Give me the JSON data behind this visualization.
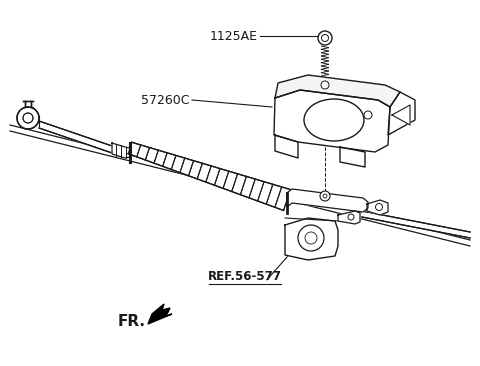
{
  "bg_color": "#ffffff",
  "line_color": "#1a1a1a",
  "label_1125AE": "1125AE",
  "label_57260C": "57260C",
  "label_ref": "REF.56-577",
  "label_fr": "FR.",
  "fig_width": 4.8,
  "fig_height": 3.66,
  "dpi": 100
}
